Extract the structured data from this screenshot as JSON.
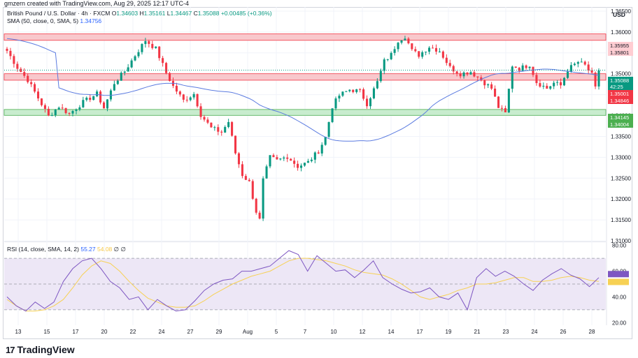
{
  "caption": "gmzern created with TradingView.com, Aug 29, 2025 12:17 UTC-4",
  "footer": {
    "logo_mark": "17",
    "logo_text": "TradingView"
  },
  "legend": {
    "symbol": "British Pound / U.S. Dollar · 4h · FXCM",
    "ohlc": {
      "O": "1.34603",
      "H": "1.35161",
      "L": "1.34467",
      "C": "1.35088",
      "change": "+0.00485 (+0.36%)"
    },
    "sma_label": "SMA (50, close, 0, SMA, 5)",
    "sma_value": "1.34756",
    "rsi_label": "RSI (14, close, SMA, 14, 2)",
    "rsi_value": "55.27",
    "rsi_sma_value": "54.08",
    "rsi_extra": "∅ ∅"
  },
  "colors": {
    "up": "#089981",
    "down": "#f23645",
    "sma": "#5b7be0",
    "rsi": "#7e57c2",
    "rsi_sma": "#f7d154",
    "resistance_zone": "#f8c8cc",
    "support_zone": "#c8ecce",
    "rsi_band": "#ede7f6"
  },
  "chart_data": [
    {
      "type": "candlestick",
      "title": "British Pound / U.S. Dollar",
      "interval": "4h",
      "currency": "USD",
      "ylim": [
        1.31,
        1.366
      ],
      "y_ticks": [
        "1.36500",
        "1.36000",
        "1.35500",
        "1.35000",
        "1.34500",
        "1.34000",
        "1.33500",
        "1.33000",
        "1.32500",
        "1.32000",
        "1.31500",
        "1.31000"
      ],
      "x_ticks": [
        "13",
        "15",
        "17",
        "20",
        "22",
        "24",
        "27",
        "29",
        "Aug",
        "5",
        "7",
        "10",
        "12",
        "14",
        "17",
        "19",
        "21",
        "23",
        "24",
        "26",
        "28"
      ],
      "grid": true,
      "price_labels": [
        {
          "value": "1.35955",
          "kind": "resistance"
        },
        {
          "value": "1.35801",
          "kind": "resistance"
        },
        {
          "value": "1.35088",
          "kind": "current"
        },
        {
          "value": "42:25",
          "kind": "countdown"
        },
        {
          "value": "1.35001",
          "kind": "resistance"
        },
        {
          "value": "1.34846",
          "kind": "resistance"
        },
        {
          "value": "1.34145",
          "kind": "support"
        },
        {
          "value": "1.34004",
          "kind": "support"
        }
      ],
      "zones": [
        {
          "name": "resistance-upper",
          "from": 1.35801,
          "to": 1.35955
        },
        {
          "name": "resistance-lower",
          "from": 1.34846,
          "to": 1.35001
        },
        {
          "name": "support",
          "from": 1.34004,
          "to": 1.34145
        }
      ],
      "sma_period": 50,
      "keypoints": [
        [
          0,
          1.3555
        ],
        [
          3,
          1.3515
        ],
        [
          6,
          1.3485
        ],
        [
          9,
          1.3442
        ],
        [
          12,
          1.3398
        ],
        [
          15,
          1.3422
        ],
        [
          18,
          1.3404
        ],
        [
          22,
          1.3432
        ],
        [
          26,
          1.3452
        ],
        [
          28,
          1.3418
        ],
        [
          31,
          1.3478
        ],
        [
          34,
          1.3506
        ],
        [
          37,
          1.3544
        ],
        [
          40,
          1.358
        ],
        [
          43,
          1.356
        ],
        [
          46,
          1.3502
        ],
        [
          48,
          1.347
        ],
        [
          51,
          1.3436
        ],
        [
          54,
          1.3452
        ],
        [
          56,
          1.3402
        ],
        [
          59,
          1.337
        ],
        [
          62,
          1.336
        ],
        [
          64,
          1.3385
        ],
        [
          66,
          1.331
        ],
        [
          68,
          1.3258
        ],
        [
          70,
          1.324
        ],
        [
          72,
          1.317
        ],
        [
          73,
          1.315
        ],
        [
          74,
          1.3245
        ],
        [
          76,
          1.33
        ],
        [
          78,
          1.3292
        ],
        [
          81,
          1.3302
        ],
        [
          84,
          1.3278
        ],
        [
          87,
          1.3288
        ],
        [
          90,
          1.3315
        ],
        [
          92,
          1.3348
        ],
        [
          94,
          1.3422
        ],
        [
          96,
          1.3448
        ],
        [
          99,
          1.3462
        ],
        [
          102,
          1.3458
        ],
        [
          104,
          1.3428
        ],
        [
          107,
          1.348
        ],
        [
          109,
          1.353
        ],
        [
          111,
          1.3546
        ],
        [
          113,
          1.358
        ],
        [
          115,
          1.359
        ],
        [
          117,
          1.3555
        ],
        [
          119,
          1.3545
        ],
        [
          122,
          1.3565
        ],
        [
          125,
          1.3555
        ],
        [
          128,
          1.3515
        ],
        [
          131,
          1.35
        ],
        [
          134,
          1.3505
        ],
        [
          137,
          1.3485
        ],
        [
          140,
          1.3465
        ],
        [
          142,
          1.342
        ],
        [
          144,
          1.3405
        ],
        [
          146,
          1.352
        ],
        [
          148,
          1.3512
        ],
        [
          151,
          1.3522
        ],
        [
          153,
          1.348
        ],
        [
          156,
          1.3465
        ],
        [
          158,
          1.3478
        ],
        [
          160,
          1.3472
        ],
        [
          162,
          1.351
        ],
        [
          165,
          1.3528
        ],
        [
          167,
          1.352
        ],
        [
          169,
          1.3497
        ],
        [
          170,
          1.3465
        ],
        [
          171,
          1.3509
        ]
      ]
    },
    {
      "type": "line",
      "title": "RSI (14, close, SMA, 14, 2)",
      "ylim": [
        18,
        82
      ],
      "y_ticks": [
        "80.00",
        "60.00",
        "40.00",
        "20.00"
      ],
      "bands": [
        30,
        50,
        70
      ],
      "series": [
        {
          "name": "RSI",
          "values": [
            40,
            33,
            29,
            36,
            31,
            36,
            52,
            62,
            68,
            70,
            62,
            52,
            47,
            38,
            40,
            30,
            38,
            33,
            29,
            30,
            37,
            45,
            50,
            53,
            54,
            60,
            60,
            62,
            64,
            70,
            76,
            73,
            60,
            72,
            66,
            60,
            61,
            55,
            61,
            68,
            55,
            50,
            46,
            43,
            44,
            47,
            40,
            38,
            43,
            30,
            55,
            62,
            56,
            60,
            56,
            50,
            45,
            53,
            58,
            62,
            57,
            54,
            48,
            55
          ]
        },
        {
          "name": "RSI-based MA",
          "values": [
            38,
            33,
            29,
            29,
            30,
            33,
            38,
            47,
            57,
            64,
            68,
            66,
            60,
            52,
            45,
            39,
            36,
            33,
            32,
            32,
            33,
            37,
            42,
            46,
            50,
            53,
            56,
            58,
            60,
            64,
            68,
            70,
            70,
            69,
            68,
            66,
            64,
            61,
            59,
            58,
            57,
            54,
            50,
            45,
            40,
            38,
            40,
            42,
            45,
            47,
            50,
            50,
            51,
            53,
            55,
            55,
            52,
            52,
            53,
            55,
            56,
            55,
            53,
            52
          ]
        }
      ]
    }
  ]
}
